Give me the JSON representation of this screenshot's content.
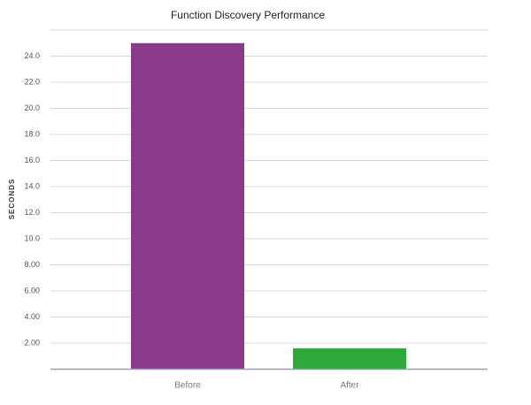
{
  "chart_data": {
    "type": "bar",
    "title": "Function Discovery Performance",
    "y_label": "SECONDS",
    "categories": [
      "Before",
      "After"
    ],
    "values": [
      25,
      1.6
    ],
    "colors": [
      "#8b3a8b",
      "#2ea83b"
    ],
    "ylim": [
      0,
      26
    ],
    "yticks": [
      {
        "value": 2,
        "label": "2.00"
      },
      {
        "value": 4,
        "label": "4.00"
      },
      {
        "value": 6,
        "label": "6.00"
      },
      {
        "value": 8,
        "label": "8.00"
      },
      {
        "value": 10,
        "label": "10.0"
      },
      {
        "value": 12,
        "label": "12.0"
      },
      {
        "value": 14,
        "label": "14.0"
      },
      {
        "value": 16,
        "label": "16.0"
      },
      {
        "value": 18,
        "label": "18.0"
      },
      {
        "value": 20,
        "label": "20.0"
      },
      {
        "value": 22,
        "label": "22.0"
      },
      {
        "value": 24,
        "label": "24.0"
      }
    ],
    "grid": true
  }
}
